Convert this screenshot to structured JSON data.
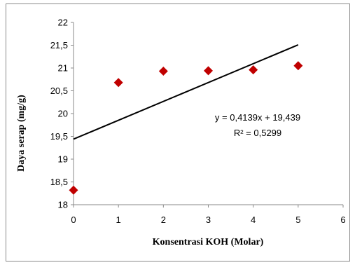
{
  "chart_data": {
    "type": "scatter",
    "xlabel": "Konsentrasi KOH (Molar)",
    "ylabel": "Daya serap (mg/g)",
    "xlim": [
      0,
      6
    ],
    "ylim": [
      18,
      22
    ],
    "x_ticks": [
      "0",
      "1",
      "2",
      "3",
      "4",
      "5",
      "6"
    ],
    "y_ticks": [
      "18",
      "18,5",
      "19",
      "19,5",
      "20",
      "20,5",
      "21",
      "21,5",
      "22"
    ],
    "series": [
      {
        "marker": "diamond",
        "color": "#c00000",
        "points": [
          {
            "x": 0,
            "y": 18.32
          },
          {
            "x": 1,
            "y": 20.68
          },
          {
            "x": 2,
            "y": 20.93
          },
          {
            "x": 3,
            "y": 20.94
          },
          {
            "x": 4,
            "y": 20.96
          },
          {
            "x": 5,
            "y": 21.05
          }
        ]
      }
    ],
    "trendline": {
      "type": "linear",
      "slope": 0.4139,
      "intercept": 19.439,
      "x_range": [
        0,
        5
      ],
      "color": "#000000",
      "equation_text": "y = 0,4139x + 19,439",
      "r2_text": "R² = 0,5299"
    },
    "grid": false,
    "legend": "none"
  }
}
